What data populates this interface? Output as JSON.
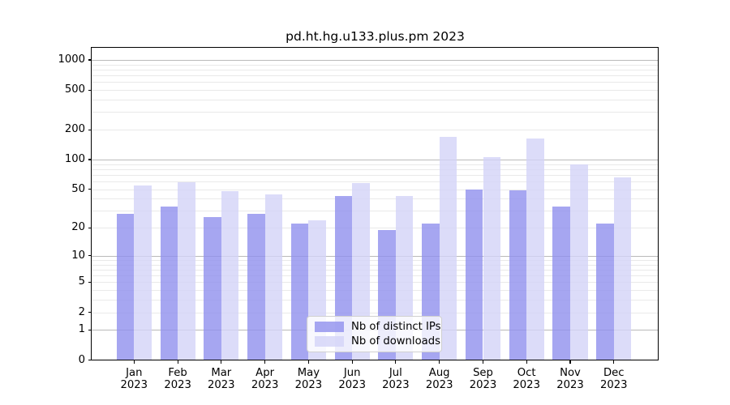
{
  "figure": {
    "background": "#ffffff"
  },
  "chart_data": {
    "type": "bar",
    "title": "pd.ht.hg.u133.plus.pm 2023",
    "categories": [
      "Jan",
      "Feb",
      "Mar",
      "Apr",
      "May",
      "Jun",
      "Jul",
      "Aug",
      "Sep",
      "Oct",
      "Nov",
      "Dec"
    ],
    "category_year": "2023",
    "series": [
      {
        "name": "Nb of distinct IPs",
        "color": "rgba(144,144,238,0.8)",
        "color_on_white": "#a6a6ef",
        "values": [
          28,
          33,
          26,
          28,
          22,
          43,
          19,
          22,
          50,
          49,
          33,
          22
        ]
      },
      {
        "name": "Nb of downloads",
        "color": "rgba(211,211,247,0.8)",
        "color_on_white": "#dcdcf8",
        "values": [
          55,
          59,
          48,
          44,
          24,
          58,
          43,
          168,
          106,
          162,
          90,
          66
        ]
      }
    ],
    "yscale": "log1p",
    "yticks": [
      0,
      1,
      2,
      5,
      10,
      20,
      50,
      100,
      200,
      500,
      1000
    ],
    "ylim": [
      0,
      1320
    ],
    "xlabel": "",
    "ylabel": "",
    "grid": "horizontal major at 1,10,100,1000 and log minors",
    "legend_position": "lower center",
    "colors": {
      "grid_major": "#bababa",
      "grid_minor": "#e9e9e9",
      "axis": "#000000",
      "legend_border": "#d0d0d0"
    }
  }
}
